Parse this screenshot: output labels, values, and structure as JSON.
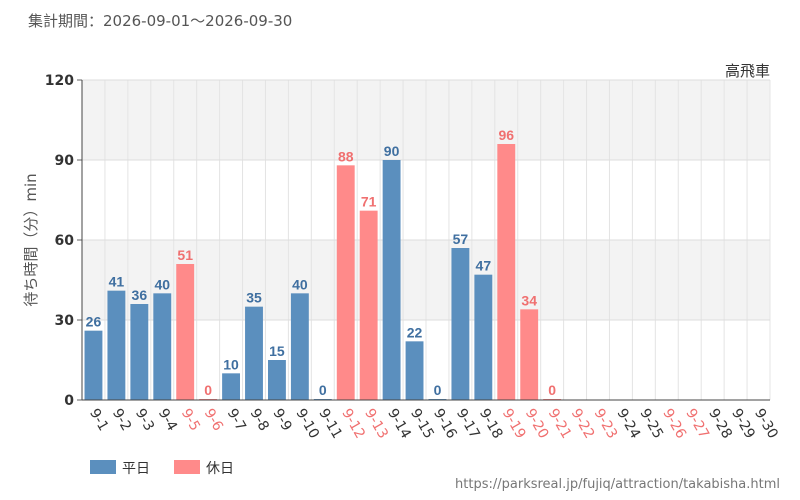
{
  "header": {
    "period": "集計期間：2026-09-01～2026-09-30"
  },
  "footer": {
    "url": "https://parksreal.jp/fujiq/attraction/takabisha.html"
  },
  "colors": {
    "weekday": "#5b8fbe",
    "holiday": "#ff8a8a",
    "weekday_text": "#3f6fa0",
    "holiday_text": "#f07070"
  },
  "chart_data": {
    "type": "bar",
    "title": "高飛車",
    "ylabel": "待ち時間（分）min",
    "ylim": [
      0,
      120
    ],
    "yticks": [
      0,
      30,
      60,
      90,
      120
    ],
    "categories": [
      "9-1",
      "9-2",
      "9-3",
      "9-4",
      "9-5",
      "9-6",
      "9-7",
      "9-8",
      "9-9",
      "9-10",
      "9-11",
      "9-12",
      "9-13",
      "9-14",
      "9-15",
      "9-16",
      "9-17",
      "9-18",
      "9-19",
      "9-20",
      "9-21",
      "9-22",
      "9-23",
      "9-24",
      "9-25",
      "9-26",
      "9-27",
      "9-28",
      "9-29",
      "9-30"
    ],
    "values": [
      26,
      41,
      36,
      40,
      51,
      0,
      10,
      35,
      15,
      40,
      0,
      88,
      71,
      90,
      22,
      0,
      57,
      47,
      96,
      34,
      0,
      null,
      null,
      null,
      null,
      null,
      null,
      null,
      null,
      null
    ],
    "day_type": [
      "weekday",
      "weekday",
      "weekday",
      "weekday",
      "holiday",
      "holiday",
      "weekday",
      "weekday",
      "weekday",
      "weekday",
      "weekday",
      "holiday",
      "holiday",
      "weekday",
      "weekday",
      "weekday",
      "weekday",
      "weekday",
      "holiday",
      "holiday",
      "holiday",
      "holiday",
      "holiday",
      "weekday",
      "weekday",
      "holiday",
      "holiday",
      "weekday",
      "weekday",
      "weekday"
    ],
    "legend": [
      {
        "key": "weekday",
        "label": "平日"
      },
      {
        "key": "holiday",
        "label": "休日"
      }
    ],
    "legend_position": "bottom-left",
    "grid": true
  }
}
